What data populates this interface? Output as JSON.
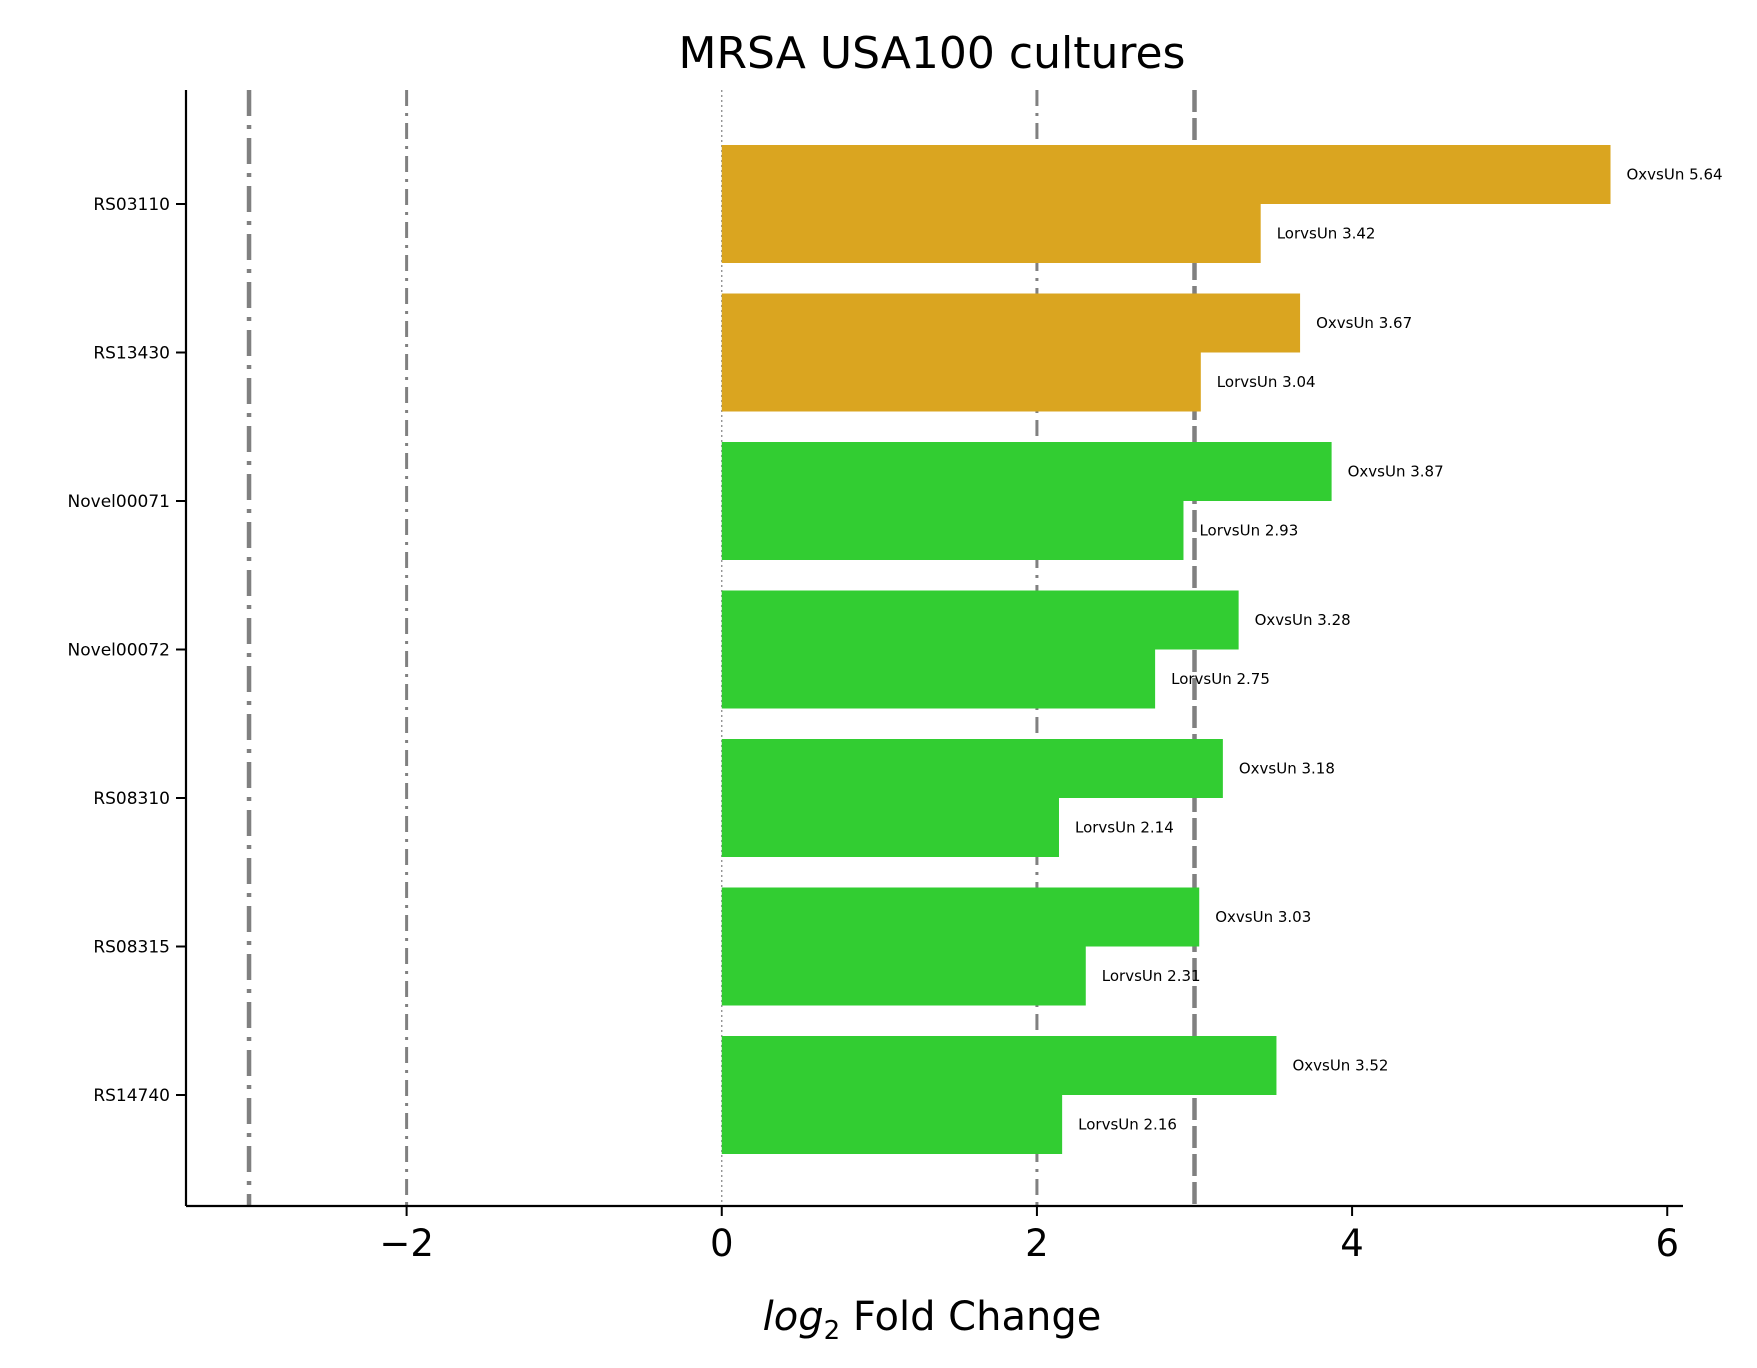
{
  "chart_data": {
    "type": "bar",
    "orientation": "horizontal",
    "title": "MRSA USA100 cultures",
    "xlabel_math": "log",
    "xlabel_sub": "2",
    "xlabel_text": " Fold Change",
    "xlim": [
      -3.4,
      6.1
    ],
    "xticks": [
      -2,
      0,
      2,
      4,
      6
    ],
    "xtick_labels": [
      "−2",
      "0",
      "2",
      "4",
      "6"
    ],
    "categories": [
      "RS03110",
      "RS13430",
      "Novel00071",
      "Novel00072",
      "RS08310",
      "RS08315",
      "RS14740"
    ],
    "category_colors": [
      "#DAA520",
      "#DAA520",
      "#32CD32",
      "#32CD32",
      "#32CD32",
      "#32CD32",
      "#32CD32"
    ],
    "series": [
      {
        "name": "OxvsUn",
        "values": [
          5.64,
          3.67,
          3.87,
          3.28,
          3.18,
          3.03,
          3.52
        ]
      },
      {
        "name": "LorvsUn",
        "values": [
          3.42,
          3.04,
          2.93,
          2.75,
          2.14,
          2.31,
          2.16
        ]
      }
    ],
    "bar_labels": [
      [
        "OxvsUn 5.64",
        "LorvsUn 3.42"
      ],
      [
        "OxvsUn 3.67",
        "LorvsUn 3.04"
      ],
      [
        "OxvsUn 3.87",
        "LorvsUn 2.93"
      ],
      [
        "OxvsUn 3.28",
        "LorvsUn 2.75"
      ],
      [
        "OxvsUn 3.18",
        "LorvsUn 2.14"
      ],
      [
        "OxvsUn 3.03",
        "LorvsUn 2.31"
      ],
      [
        "OxvsUn 3.52",
        "LorvsUn 2.16"
      ]
    ],
    "reference_lines": [
      {
        "x": -3,
        "style": "dashdot-heavy"
      },
      {
        "x": -2,
        "style": "dashdot"
      },
      {
        "x": 0,
        "style": "dotted"
      },
      {
        "x": 2,
        "style": "dashdot"
      },
      {
        "x": 3,
        "style": "dashed-heavy"
      }
    ],
    "reference_line_color": "#808080",
    "grid": false
  }
}
